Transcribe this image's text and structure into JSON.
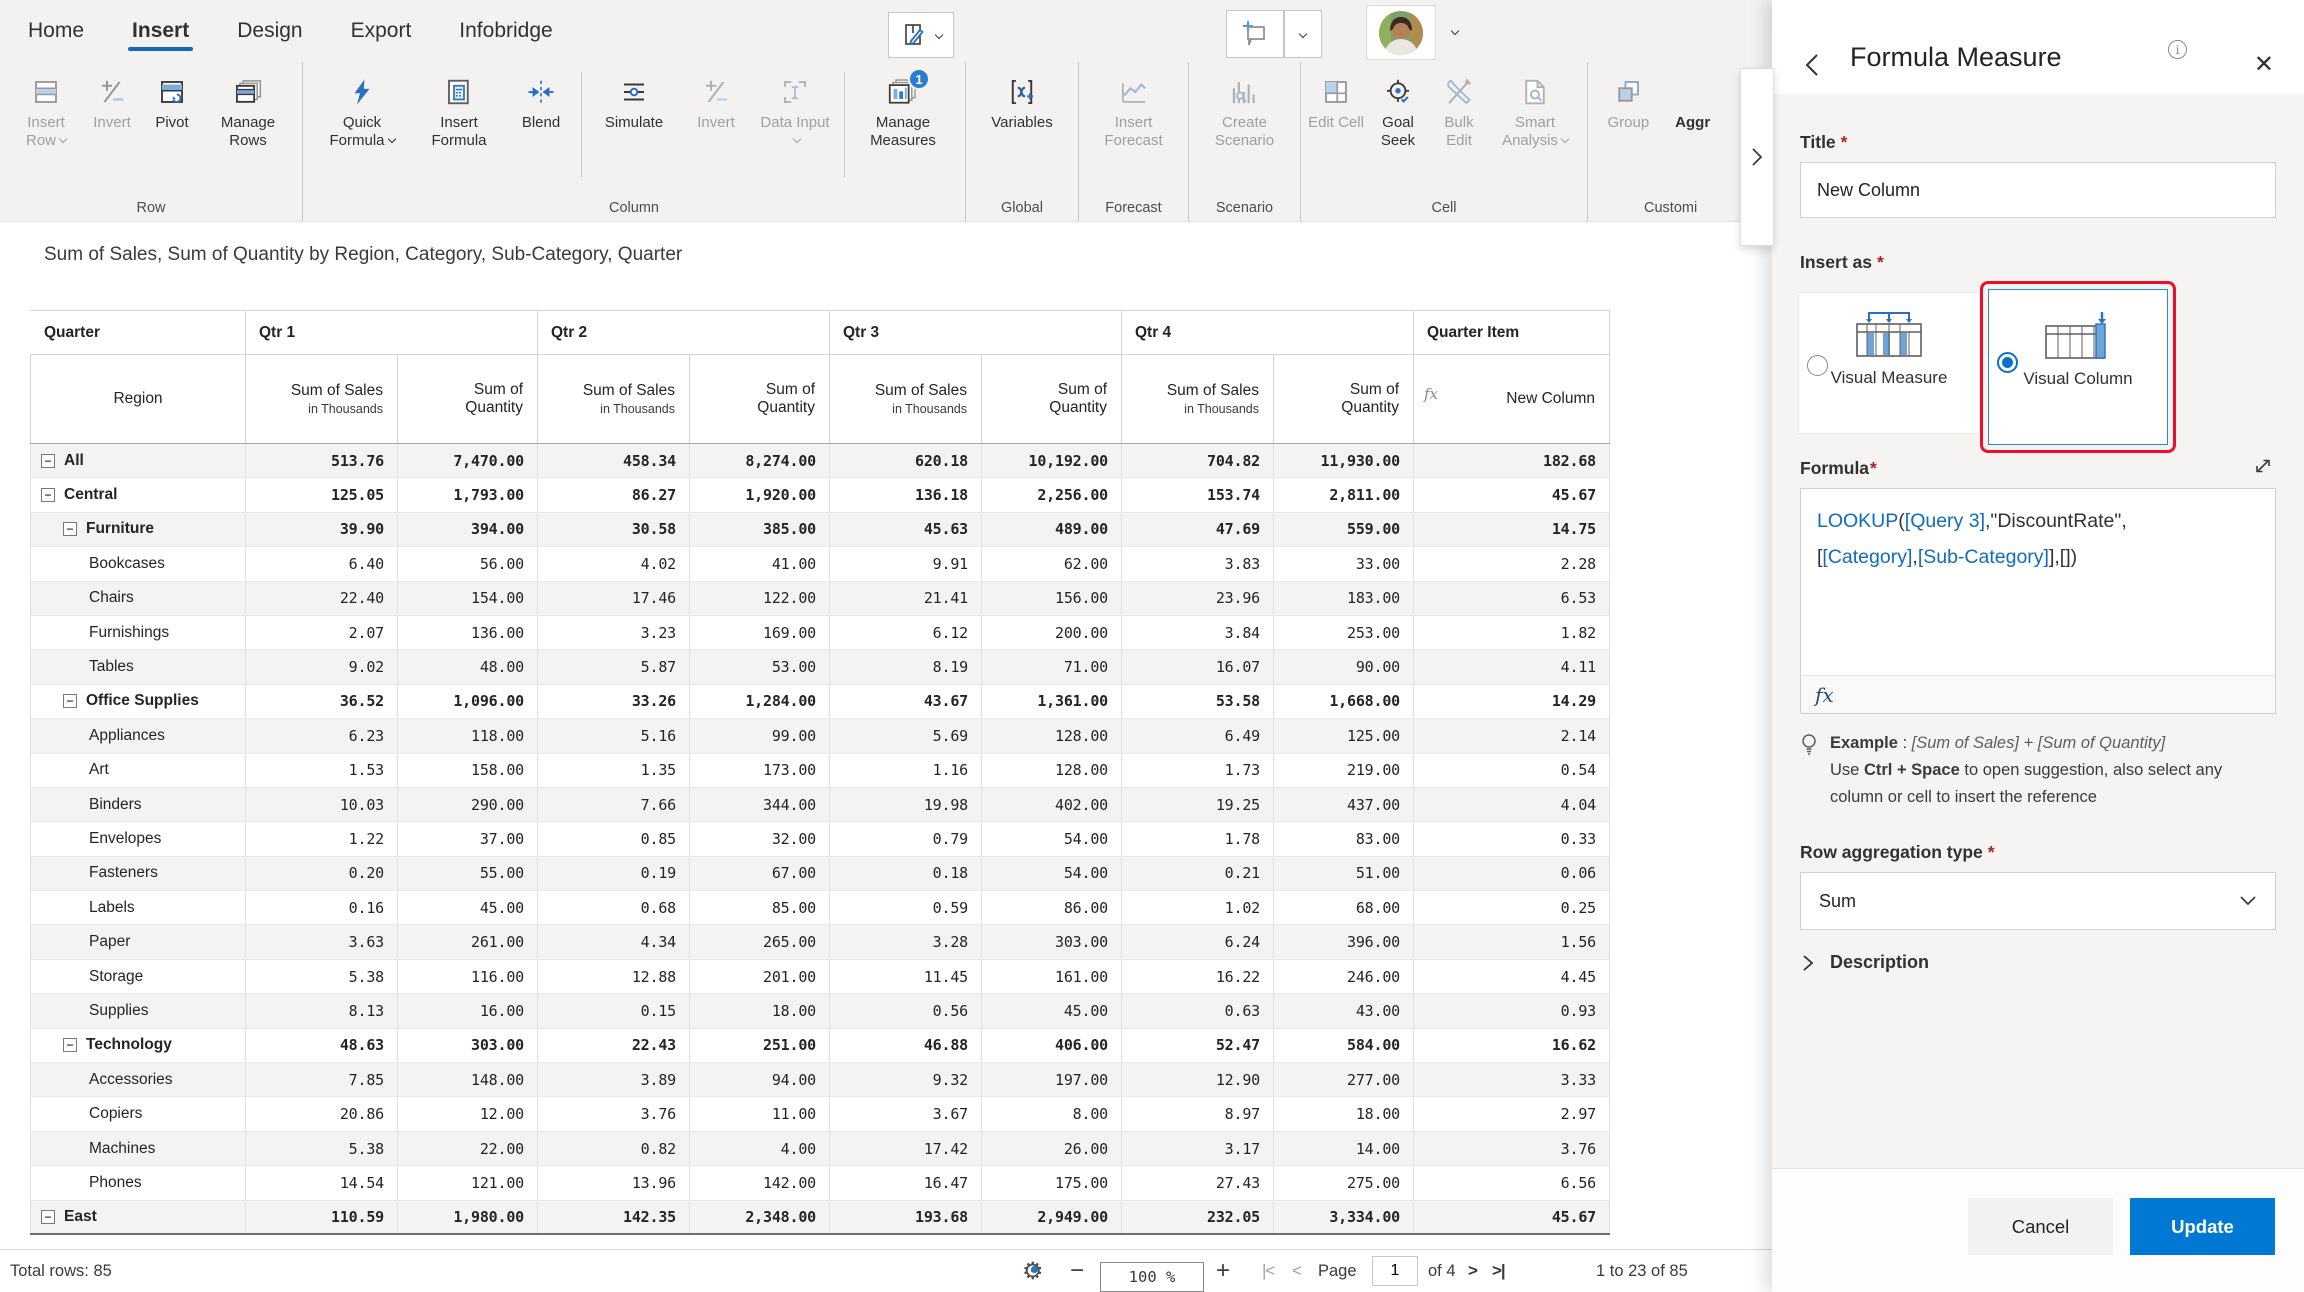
{
  "tabs": {
    "items": [
      "Home",
      "Insert",
      "Design",
      "Export",
      "Infobridge"
    ],
    "active_index": 1
  },
  "ribbon": {
    "groups": [
      {
        "label": "Row",
        "buttons": [
          {
            "label": "Insert Row",
            "icon": "insert-row-icon",
            "disabled": true,
            "caret": true
          },
          {
            "label": "Invert",
            "icon": "invert-rows-icon",
            "disabled": true
          },
          {
            "label": "Pivot",
            "icon": "pivot-icon"
          },
          {
            "label": "Manage Rows",
            "icon": "manage-rows-icon"
          }
        ]
      },
      {
        "label": "Column",
        "buttons": [
          {
            "label": "Quick Formula",
            "icon": "quick-formula-icon",
            "caret": true
          },
          {
            "label": "Insert Formula",
            "icon": "insert-formula-icon"
          },
          {
            "label": "Blend",
            "icon": "blend-icon"
          },
          {
            "label": "Simulate",
            "icon": "simulate-icon"
          },
          {
            "label": "Invert",
            "icon": "invert-columns-icon",
            "disabled": true
          },
          {
            "label": "Data Input",
            "icon": "data-input-icon",
            "disabled": true,
            "caret": true
          },
          {
            "label": "Manage Measures",
            "icon": "manage-measures-icon",
            "badge": "1"
          }
        ]
      },
      {
        "label": "Global",
        "buttons": [
          {
            "label": "Variables",
            "icon": "variables-icon"
          }
        ]
      },
      {
        "label": "Forecast",
        "buttons": [
          {
            "label": "Insert Forecast",
            "icon": "insert-forecast-icon",
            "disabled": true
          }
        ]
      },
      {
        "label": "Scenario",
        "buttons": [
          {
            "label": "Create Scenario",
            "icon": "create-scenario-icon",
            "disabled": true
          }
        ]
      },
      {
        "label": "Cell",
        "buttons": [
          {
            "label": "Edit Cell",
            "icon": "edit-cell-icon",
            "disabled": true
          },
          {
            "label": "Goal Seek",
            "icon": "goal-seek-icon"
          },
          {
            "label": "Bulk Edit",
            "icon": "bulk-edit-icon",
            "disabled": true
          },
          {
            "label": "Smart Analysis",
            "icon": "smart-analysis-icon",
            "disabled": true,
            "caret": true
          }
        ]
      },
      {
        "label": "Customi",
        "buttons": [
          {
            "label": "Group",
            "icon": "group-icon",
            "disabled": true
          },
          {
            "label": "Aggr",
            "icon": "aggregate-icon"
          }
        ]
      }
    ]
  },
  "table": {
    "title": "Sum of Sales, Sum of Quantity by Region, Category, Sub-Category, Quarter",
    "corner_label": "Quarter",
    "row_header": "Region",
    "quarters": [
      "Qtr 1",
      "Qtr 2",
      "Qtr 3",
      "Qtr 4"
    ],
    "item_header": "Quarter Item",
    "sales_header": "Sum of Sales",
    "sales_sub": "in Thousands",
    "qty_header_line1": "Sum of",
    "qty_header_line2": "Quantity",
    "newcol_header": "New Column",
    "fx_icon": "fx-icon",
    "rows": [
      {
        "label": "All",
        "level": 0,
        "expandable": true,
        "bold": true,
        "cells": [
          "513.76",
          "7,470.00",
          "458.34",
          "8,274.00",
          "620.18",
          "10,192.00",
          "704.82",
          "11,930.00",
          "182.68"
        ]
      },
      {
        "label": "Central",
        "level": 0,
        "expandable": true,
        "bold": true,
        "cells": [
          "125.05",
          "1,793.00",
          "86.27",
          "1,920.00",
          "136.18",
          "2,256.00",
          "153.74",
          "2,811.00",
          "45.67"
        ]
      },
      {
        "label": "Furniture",
        "level": 1,
        "expandable": true,
        "bold": true,
        "cells": [
          "39.90",
          "394.00",
          "30.58",
          "385.00",
          "45.63",
          "489.00",
          "47.69",
          "559.00",
          "14.75"
        ]
      },
      {
        "label": "Bookcases",
        "level": 2,
        "expandable": false,
        "bold": false,
        "cells": [
          "6.40",
          "56.00",
          "4.02",
          "41.00",
          "9.91",
          "62.00",
          "3.83",
          "33.00",
          "2.28"
        ]
      },
      {
        "label": "Chairs",
        "level": 2,
        "expandable": false,
        "bold": false,
        "cells": [
          "22.40",
          "154.00",
          "17.46",
          "122.00",
          "21.41",
          "156.00",
          "23.96",
          "183.00",
          "6.53"
        ]
      },
      {
        "label": "Furnishings",
        "level": 2,
        "expandable": false,
        "bold": false,
        "cells": [
          "2.07",
          "136.00",
          "3.23",
          "169.00",
          "6.12",
          "200.00",
          "3.84",
          "253.00",
          "1.82"
        ]
      },
      {
        "label": "Tables",
        "level": 2,
        "expandable": false,
        "bold": false,
        "cells": [
          "9.02",
          "48.00",
          "5.87",
          "53.00",
          "8.19",
          "71.00",
          "16.07",
          "90.00",
          "4.11"
        ]
      },
      {
        "label": "Office Supplies",
        "level": 1,
        "expandable": true,
        "bold": true,
        "cells": [
          "36.52",
          "1,096.00",
          "33.26",
          "1,284.00",
          "43.67",
          "1,361.00",
          "53.58",
          "1,668.00",
          "14.29"
        ]
      },
      {
        "label": "Appliances",
        "level": 2,
        "expandable": false,
        "bold": false,
        "cells": [
          "6.23",
          "118.00",
          "5.16",
          "99.00",
          "5.69",
          "128.00",
          "6.49",
          "125.00",
          "2.14"
        ]
      },
      {
        "label": "Art",
        "level": 2,
        "expandable": false,
        "bold": false,
        "cells": [
          "1.53",
          "158.00",
          "1.35",
          "173.00",
          "1.16",
          "128.00",
          "1.73",
          "219.00",
          "0.54"
        ]
      },
      {
        "label": "Binders",
        "level": 2,
        "expandable": false,
        "bold": false,
        "cells": [
          "10.03",
          "290.00",
          "7.66",
          "344.00",
          "19.98",
          "402.00",
          "19.25",
          "437.00",
          "4.04"
        ]
      },
      {
        "label": "Envelopes",
        "level": 2,
        "expandable": false,
        "bold": false,
        "cells": [
          "1.22",
          "37.00",
          "0.85",
          "32.00",
          "0.79",
          "54.00",
          "1.78",
          "83.00",
          "0.33"
        ]
      },
      {
        "label": "Fasteners",
        "level": 2,
        "expandable": false,
        "bold": false,
        "cells": [
          "0.20",
          "55.00",
          "0.19",
          "67.00",
          "0.18",
          "54.00",
          "0.21",
          "51.00",
          "0.06"
        ]
      },
      {
        "label": "Labels",
        "level": 2,
        "expandable": false,
        "bold": false,
        "cells": [
          "0.16",
          "45.00",
          "0.68",
          "85.00",
          "0.59",
          "86.00",
          "1.02",
          "68.00",
          "0.25"
        ]
      },
      {
        "label": "Paper",
        "level": 2,
        "expandable": false,
        "bold": false,
        "cells": [
          "3.63",
          "261.00",
          "4.34",
          "265.00",
          "3.28",
          "303.00",
          "6.24",
          "396.00",
          "1.56"
        ]
      },
      {
        "label": "Storage",
        "level": 2,
        "expandable": false,
        "bold": false,
        "cells": [
          "5.38",
          "116.00",
          "12.88",
          "201.00",
          "11.45",
          "161.00",
          "16.22",
          "246.00",
          "4.45"
        ]
      },
      {
        "label": "Supplies",
        "level": 2,
        "expandable": false,
        "bold": false,
        "cells": [
          "8.13",
          "16.00",
          "0.15",
          "18.00",
          "0.56",
          "45.00",
          "0.63",
          "43.00",
          "0.93"
        ]
      },
      {
        "label": "Technology",
        "level": 1,
        "expandable": true,
        "bold": true,
        "cells": [
          "48.63",
          "303.00",
          "22.43",
          "251.00",
          "46.88",
          "406.00",
          "52.47",
          "584.00",
          "16.62"
        ]
      },
      {
        "label": "Accessories",
        "level": 2,
        "expandable": false,
        "bold": false,
        "cells": [
          "7.85",
          "148.00",
          "3.89",
          "94.00",
          "9.32",
          "197.00",
          "12.90",
          "277.00",
          "3.33"
        ]
      },
      {
        "label": "Copiers",
        "level": 2,
        "expandable": false,
        "bold": false,
        "cells": [
          "20.86",
          "12.00",
          "3.76",
          "11.00",
          "3.67",
          "8.00",
          "8.97",
          "18.00",
          "2.97"
        ]
      },
      {
        "label": "Machines",
        "level": 2,
        "expandable": false,
        "bold": false,
        "cells": [
          "5.38",
          "22.00",
          "0.82",
          "4.00",
          "17.42",
          "26.00",
          "3.17",
          "14.00",
          "3.76"
        ]
      },
      {
        "label": "Phones",
        "level": 2,
        "expandable": false,
        "bold": false,
        "cells": [
          "14.54",
          "121.00",
          "13.96",
          "142.00",
          "16.47",
          "175.00",
          "27.43",
          "275.00",
          "6.56"
        ]
      },
      {
        "label": "East",
        "level": 0,
        "expandable": true,
        "bold": true,
        "last": true,
        "cells": [
          "110.59",
          "1,980.00",
          "142.35",
          "2,348.00",
          "193.68",
          "2,949.00",
          "232.05",
          "3,334.00",
          "45.67"
        ]
      }
    ]
  },
  "statusbar": {
    "total_rows": "Total rows: 85",
    "zoom_value": "100 %",
    "page_label": "Page",
    "page_value": "1",
    "page_total": "of 4",
    "range": "1 to 23 of 85",
    "icons": [
      "settings-gear-icon",
      "zoom-out-icon",
      "zoom-in-icon",
      "first-page-icon",
      "prev-page-icon",
      "next-page-icon",
      "last-page-icon"
    ]
  },
  "panel": {
    "title": "Formula Measure",
    "icons": {
      "back": "back-chevron-icon",
      "info": "info-icon",
      "close": "close-icon",
      "pin": "pin-icon",
      "filter": "filter-icon",
      "focus": "focus-mode-icon",
      "more": "more-options-icon"
    },
    "accent_color": "#0078d4",
    "highlight_color": "#e8112d",
    "title_field": {
      "label": "Title",
      "value": "New Column"
    },
    "insert_as": {
      "label": "Insert as",
      "options": [
        {
          "label": "Visual Measure",
          "icon": "visual-measure-icon",
          "selected": false
        },
        {
          "label": "Visual Column",
          "icon": "visual-column-icon",
          "selected": true
        }
      ]
    },
    "formula": {
      "label": "Formula",
      "t1": "LOOKUP",
      "t2": "(",
      "t3": "[Query 3]",
      "t4": ",",
      "t5": "\"DiscountRate\"",
      "t6": ",",
      "t7": "[",
      "t8": "[Category]",
      "t9": ",",
      "t10": "[Sub-Category]",
      "t11": "],[])",
      "fx_label": "fx"
    },
    "example": {
      "bold": "Example",
      "colon": " : ",
      "italic": "[Sum of Sales] + [Sum of Quantity]",
      "hint_pre": "Use ",
      "hint_bold": "Ctrl + Space",
      "hint_post": " to open suggestion, also select any",
      "hint_line2": "column or cell to insert the reference"
    },
    "aggregation": {
      "label": "Row aggregation type",
      "value": "Sum"
    },
    "description_label": "Description",
    "cancel_label": "Cancel",
    "update_label": "Update"
  }
}
